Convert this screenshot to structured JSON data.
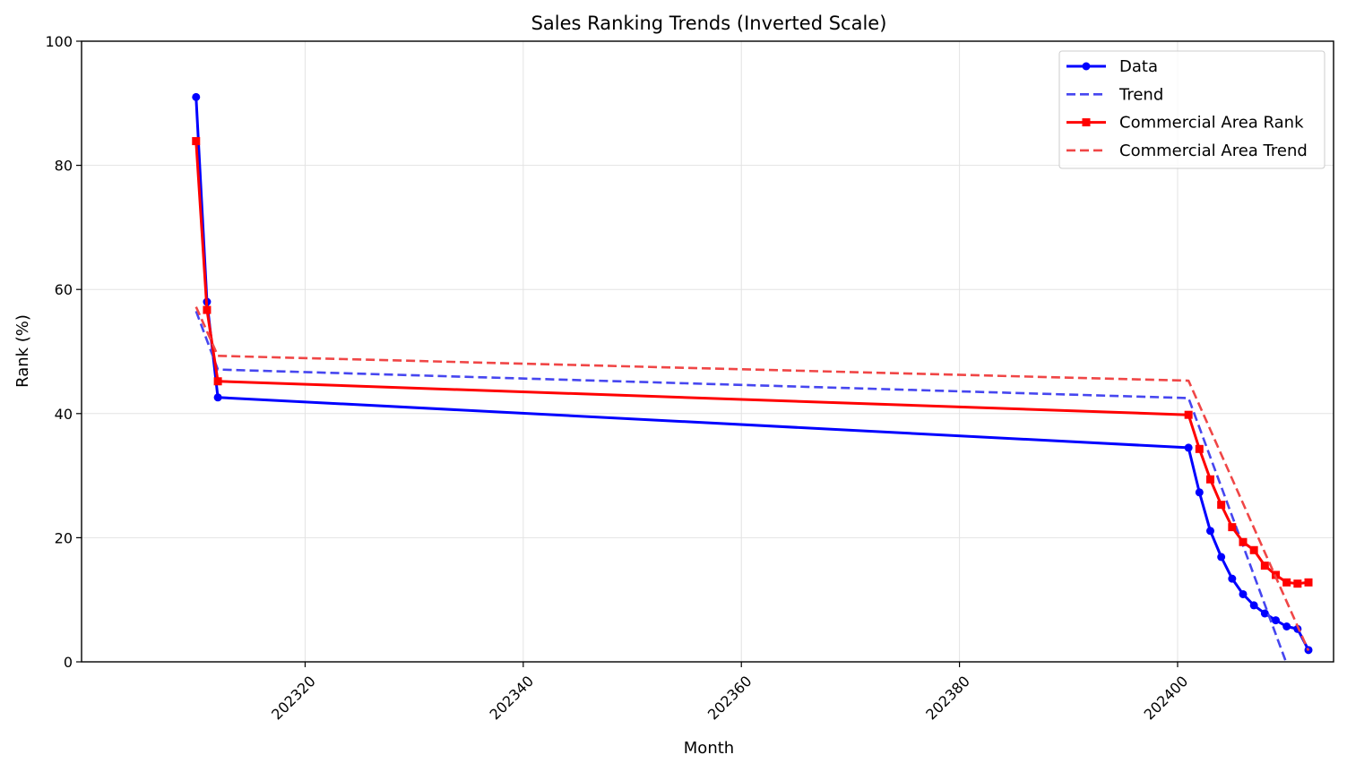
{
  "chart_data": {
    "type": "line",
    "title": "Sales Ranking Trends (Inverted Scale)",
    "xlabel": "Month",
    "ylabel": "Rank (%)",
    "xlim": [
      202299.5,
      202414.3
    ],
    "ylim": [
      0,
      100
    ],
    "xticks": [
      202320,
      202340,
      202360,
      202380,
      202400
    ],
    "yticks": [
      0,
      20,
      40,
      60,
      80,
      100
    ],
    "grid": true,
    "legend_position": "top-right",
    "series": [
      {
        "name": "Data",
        "style": "solid",
        "marker": "circle",
        "color": "#0000ff",
        "x": [
          202310,
          202311,
          202312,
          202401,
          202402,
          202403,
          202404,
          202405,
          202406,
          202407,
          202408,
          202409,
          202410,
          202411,
          202412
        ],
        "y": [
          91.0,
          58.0,
          42.6,
          34.5,
          27.3,
          21.1,
          16.9,
          13.4,
          10.9,
          9.1,
          7.8,
          6.7,
          5.7,
          5.3,
          1.9
        ]
      },
      {
        "name": "Trend",
        "style": "dashed",
        "marker": "none",
        "color": "#4646f0",
        "x": [
          202310,
          202312,
          202401,
          202410
        ],
        "y": [
          56.5,
          47.1,
          42.5,
          -0.3
        ]
      },
      {
        "name": "Commercial Area Rank",
        "style": "solid",
        "marker": "square",
        "color": "#ff0000",
        "x": [
          202310,
          202311,
          202312,
          202401,
          202402,
          202403,
          202404,
          202405,
          202406,
          202407,
          202408,
          202409,
          202410,
          202411,
          202412
        ],
        "y": [
          83.9,
          56.7,
          45.2,
          39.8,
          34.3,
          29.4,
          25.3,
          21.7,
          19.3,
          18.0,
          15.5,
          14.0,
          12.8,
          12.6,
          12.8
        ]
      },
      {
        "name": "Commercial Area Trend",
        "style": "dashed",
        "marker": "none",
        "color": "#f04646",
        "x": [
          202310,
          202312,
          202401,
          202412
        ],
        "y": [
          57.2,
          49.3,
          45.3,
          1.8
        ]
      }
    ]
  }
}
